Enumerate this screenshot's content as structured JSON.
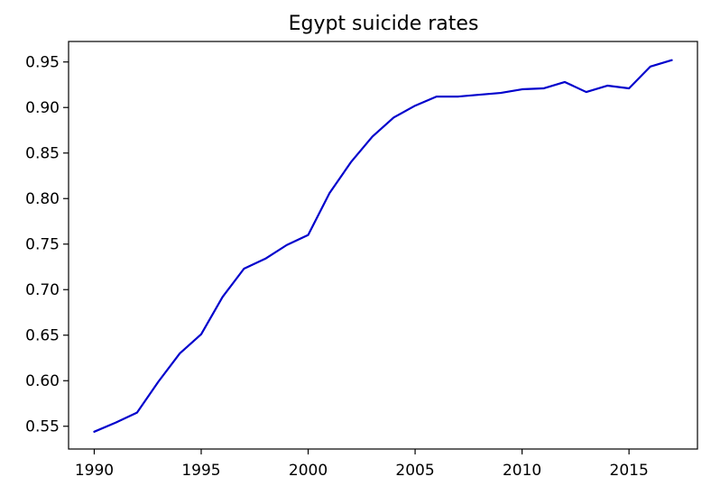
{
  "chart_data": {
    "type": "line",
    "title": "Egypt suicide rates",
    "xlabel": "",
    "ylabel": "",
    "xlim": [
      1988.8,
      2018.2
    ],
    "ylim": [
      0.525,
      0.9725
    ],
    "x_ticks": [
      1990,
      1995,
      2000,
      2005,
      2010,
      2015
    ],
    "x_tick_labels": [
      "1990",
      "1995",
      "2000",
      "2005",
      "2010",
      "2015"
    ],
    "y_ticks": [
      0.55,
      0.6,
      0.65,
      0.7,
      0.75,
      0.8,
      0.85,
      0.9,
      0.95
    ],
    "y_tick_labels": [
      "0.55",
      "0.60",
      "0.65",
      "0.70",
      "0.75",
      "0.80",
      "0.85",
      "0.90",
      "0.95"
    ],
    "grid": false,
    "legend": "none",
    "series": [
      {
        "color": "#0000cc",
        "x": [
          1990,
          1991,
          1992,
          1993,
          1994,
          1995,
          1996,
          1997,
          1998,
          1999,
          2000,
          2001,
          2002,
          2003,
          2004,
          2005,
          2006,
          2007,
          2008,
          2009,
          2010,
          2011,
          2012,
          2013,
          2014,
          2015,
          2016,
          2017
        ],
        "y": [
          0.544,
          0.554,
          0.565,
          0.599,
          0.63,
          0.651,
          0.692,
          0.723,
          0.734,
          0.749,
          0.76,
          0.806,
          0.84,
          0.868,
          0.889,
          0.902,
          0.912,
          0.912,
          0.914,
          0.916,
          0.92,
          0.921,
          0.928,
          0.917,
          0.924,
          0.921,
          0.945,
          0.952
        ]
      }
    ]
  }
}
